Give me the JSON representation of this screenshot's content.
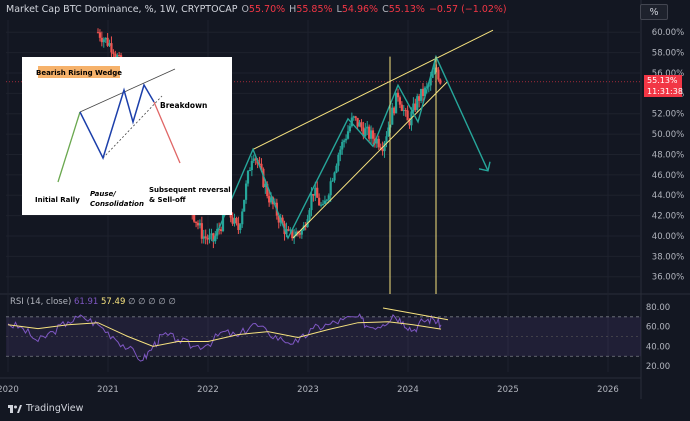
{
  "header": {
    "symbol": "Market Cap BTC Dominance, %, 1W, CRYPTOCAP",
    "open_label": "O",
    "open": "55.70%",
    "high_label": "H",
    "high": "55.85%",
    "low_label": "L",
    "low": "54.96%",
    "close_label": "C",
    "close": "55.13%",
    "change": "−0.57 (−1.02%)"
  },
  "toolbar": {
    "percent_button": "%"
  },
  "price_tag": {
    "value": "55.13%",
    "countdown": "11:31:38"
  },
  "rsi_legend": {
    "label": "RSI (14, close)",
    "value1": "61.91",
    "value2": "57.49",
    "extra": "∅ ∅ ∅ ∅ ∅"
  },
  "branding": {
    "name": "TradingView"
  },
  "inset": {
    "title": "Bearish Rising Wedge",
    "breakdown": "Breakdown",
    "initial": "Initial Rally",
    "pause_line1": "Pause/",
    "pause_line2": "Consolidation",
    "reversal_line1": "Subsequent reversal",
    "reversal_line2": "& Sell-off"
  },
  "colors": {
    "background": "#131722",
    "up_candle": "#26a69a",
    "down_candle": "#ef5350",
    "wedge": "#f7e37f",
    "drawing": "#26a69a",
    "rsi": "#7e57c2",
    "rsi_ma": "#f7e37f",
    "price_tag": "#f23645"
  },
  "chart_data": [
    {
      "type": "candlestick",
      "title": "Market Cap BTC Dominance, %, 1W, CRYPTOCAP",
      "ylabel": "",
      "xlabel": "",
      "x_ticks": [
        "2020",
        "2021",
        "2022",
        "2023",
        "2024",
        "2025",
        "2026"
      ],
      "y_ticks": [
        "36.00%",
        "38.00%",
        "40.00%",
        "42.00%",
        "44.00%",
        "46.00%",
        "48.00%",
        "50.00%",
        "52.00%",
        "54.00%",
        "56.00%",
        "58.00%",
        "60.00%"
      ],
      "ylim": [
        34.6,
        61.2
      ],
      "xlim": [
        2019.98,
        2026.33
      ],
      "last_close": 55.13,
      "approx_close_path": [
        {
          "x": 2020.9,
          "y": 60.0
        },
        {
          "x": 2021.05,
          "y": 58.5
        },
        {
          "x": 2021.2,
          "y": 55.0
        },
        {
          "x": 2021.4,
          "y": 44.0
        },
        {
          "x": 2021.6,
          "y": 46.0
        },
        {
          "x": 2021.75,
          "y": 44.5
        },
        {
          "x": 2021.95,
          "y": 40.0
        },
        {
          "x": 2022.05,
          "y": 39.5
        },
        {
          "x": 2022.2,
          "y": 42.5
        },
        {
          "x": 2022.3,
          "y": 40.5
        },
        {
          "x": 2022.45,
          "y": 48.5
        },
        {
          "x": 2022.6,
          "y": 44.0
        },
        {
          "x": 2022.8,
          "y": 40.0
        },
        {
          "x": 2022.95,
          "y": 40.5
        },
        {
          "x": 2023.05,
          "y": 44.5
        },
        {
          "x": 2023.15,
          "y": 42.5
        },
        {
          "x": 2023.3,
          "y": 48.0
        },
        {
          "x": 2023.45,
          "y": 51.5
        },
        {
          "x": 2023.6,
          "y": 50.0
        },
        {
          "x": 2023.75,
          "y": 49.0
        },
        {
          "x": 2023.9,
          "y": 54.0
        },
        {
          "x": 2024.0,
          "y": 51.0
        },
        {
          "x": 2024.1,
          "y": 53.5
        },
        {
          "x": 2024.2,
          "y": 54.5
        },
        {
          "x": 2024.28,
          "y": 56.5
        },
        {
          "x": 2024.33,
          "y": 55.13
        }
      ],
      "annotations": {
        "wedge_upper": [
          {
            "x": 2022.45,
            "y": 48.5
          },
          {
            "x": 2024.85,
            "y": 60.2
          }
        ],
        "wedge_lower": [
          {
            "x": 2022.85,
            "y": 39.8
          },
          {
            "x": 2024.4,
            "y": 55.2
          }
        ],
        "zigzag": [
          {
            "x": 2022.05,
            "y": 39.4
          },
          {
            "x": 2022.45,
            "y": 48.5
          },
          {
            "x": 2022.8,
            "y": 39.8
          },
          {
            "x": 2023.4,
            "y": 51.5
          },
          {
            "x": 2023.65,
            "y": 48.8
          },
          {
            "x": 2023.9,
            "y": 54.8
          },
          {
            "x": 2024.1,
            "y": 51.2
          },
          {
            "x": 2024.28,
            "y": 57.6
          },
          {
            "x": 2024.8,
            "y": 46.4
          }
        ],
        "vertical_markers_x": [
          2023.82,
          2024.28
        ]
      }
    },
    {
      "type": "line",
      "title": "RSI (14, close)",
      "y_ticks": [
        "20.00",
        "40.00",
        "60.00",
        "80.00"
      ],
      "ylim": [
        14,
        82
      ],
      "bands": [
        30,
        70
      ],
      "series": [
        {
          "name": "RSI",
          "values": [
            {
              "x": 2020.0,
              "y": 63
            },
            {
              "x": 2020.15,
              "y": 58
            },
            {
              "x": 2020.3,
              "y": 45
            },
            {
              "x": 2020.45,
              "y": 55
            },
            {
              "x": 2020.6,
              "y": 65
            },
            {
              "x": 2020.75,
              "y": 70
            },
            {
              "x": 2020.9,
              "y": 62
            },
            {
              "x": 2021.05,
              "y": 50
            },
            {
              "x": 2021.2,
              "y": 38
            },
            {
              "x": 2021.35,
              "y": 26
            },
            {
              "x": 2021.45,
              "y": 40
            },
            {
              "x": 2021.55,
              "y": 52
            },
            {
              "x": 2021.7,
              "y": 47
            },
            {
              "x": 2021.85,
              "y": 40
            },
            {
              "x": 2022.0,
              "y": 42
            },
            {
              "x": 2022.15,
              "y": 55
            },
            {
              "x": 2022.3,
              "y": 50
            },
            {
              "x": 2022.45,
              "y": 63
            },
            {
              "x": 2022.6,
              "y": 54
            },
            {
              "x": 2022.75,
              "y": 46
            },
            {
              "x": 2022.9,
              "y": 44
            },
            {
              "x": 2023.05,
              "y": 58
            },
            {
              "x": 2023.2,
              "y": 62
            },
            {
              "x": 2023.35,
              "y": 67
            },
            {
              "x": 2023.5,
              "y": 70
            },
            {
              "x": 2023.6,
              "y": 60
            },
            {
              "x": 2023.75,
              "y": 62
            },
            {
              "x": 2023.85,
              "y": 72
            },
            {
              "x": 2023.95,
              "y": 65
            },
            {
              "x": 2024.05,
              "y": 56
            },
            {
              "x": 2024.15,
              "y": 66
            },
            {
              "x": 2024.25,
              "y": 68
            },
            {
              "x": 2024.33,
              "y": 61.91
            }
          ]
        },
        {
          "name": "RSI-based MA",
          "values": [
            {
              "x": 2020.0,
              "y": 62
            },
            {
              "x": 2020.3,
              "y": 58
            },
            {
              "x": 2020.6,
              "y": 62
            },
            {
              "x": 2020.9,
              "y": 64
            },
            {
              "x": 2021.2,
              "y": 50
            },
            {
              "x": 2021.45,
              "y": 40
            },
            {
              "x": 2021.7,
              "y": 45
            },
            {
              "x": 2022.0,
              "y": 45
            },
            {
              "x": 2022.3,
              "y": 52
            },
            {
              "x": 2022.6,
              "y": 55
            },
            {
              "x": 2022.9,
              "y": 49
            },
            {
              "x": 2023.2,
              "y": 57
            },
            {
              "x": 2023.5,
              "y": 64
            },
            {
              "x": 2023.8,
              "y": 65
            },
            {
              "x": 2024.05,
              "y": 62
            },
            {
              "x": 2024.33,
              "y": 57.49
            }
          ]
        }
      ],
      "annotations": {
        "divergence_line": [
          {
            "x": 2023.75,
            "y": 79
          },
          {
            "x": 2024.4,
            "y": 67
          }
        ]
      }
    }
  ]
}
